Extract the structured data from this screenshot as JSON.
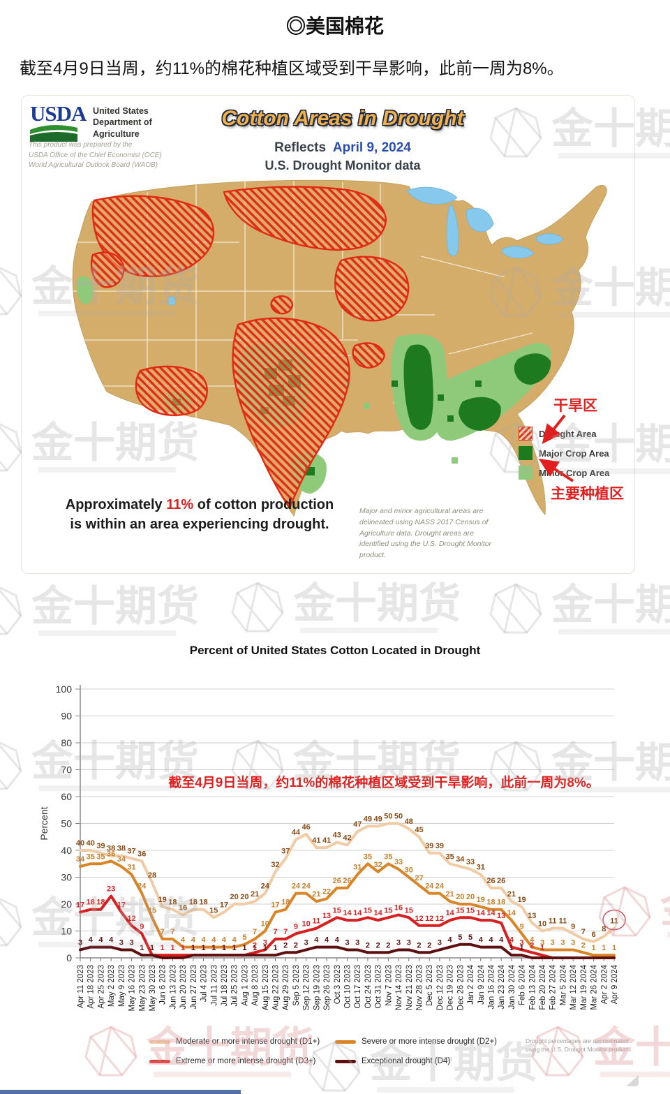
{
  "header": {
    "title": "◎美国棉花",
    "summary": "截至4月9日当周，约11%的棉花种植区域受到干旱影响，此前一周为8%。"
  },
  "map": {
    "usda": {
      "logo": "USDA",
      "agency": "United States\nDepartment of\nAgriculture",
      "prepared_by": "This product was prepared by the\nUSDA Office of the Chief Economist (OCE)\nWorld Agricultural Outlook Board (WAOB)"
    },
    "title": "Cotton Areas in Drought",
    "reflects_label": "Reflects",
    "reflects_date": "April 9, 2024",
    "source_line": "U.S. Drought Monitor data",
    "legend": [
      {
        "label": "Drought Area",
        "style": "red-hatch"
      },
      {
        "label": "Major Crop Area",
        "color": "#1e7a1f"
      },
      {
        "label": "Minor Crop Area",
        "color": "#8fca7a"
      }
    ],
    "annotations": {
      "drought_cn": "干旱区",
      "crop_cn": "主要种植区"
    },
    "approx": {
      "prefix": "Approximately ",
      "highlight": "11%",
      "suffix": " of cotton production is within an area experiencing drought."
    },
    "footnote": "Major and minor agricultural areas are delineated using NASS 2017 Census of Agriculture data.  Drought areas are identified using the U.S. Drought Monitor product."
  },
  "chart_data": {
    "type": "line",
    "title": "Percent of United States Cotton Located in Drought",
    "xlabel": "",
    "ylabel": "Percent",
    "ylim": [
      0,
      100
    ],
    "ytick_step": 10,
    "grid": true,
    "legend_position": "bottom",
    "annotation": "截至4月9日当周，约11%的棉花种植区域受到干旱影响，此前一周为8%。",
    "categories": [
      "Apr 11 2023",
      "Apr 18 2023",
      "Apr 25 2023",
      "May 2 2023",
      "May 9 2023",
      "May 16 2023",
      "May 23 2023",
      "May 30 2023",
      "Jun 6 2023",
      "Jun 13 2023",
      "Jun 20 2023",
      "Jun 27 2023",
      "Jul 4 2023",
      "Jul 11 2023",
      "Jul 18 2023",
      "Jul 25 2023",
      "Aug 1 2023",
      "Aug 8 2023",
      "Aug 15 2023",
      "Aug 22 2023",
      "Aug 29 2023",
      "Sep 5 2023",
      "Sep 12 2023",
      "Sep 19 2023",
      "Sep 26 2023",
      "Oct 3 2023",
      "Oct 10 2023",
      "Oct 17 2023",
      "Oct 24 2023",
      "Oct 31 2023",
      "Nov 7 2023",
      "Nov 14 2023",
      "Nov 21 2023",
      "Nov 28 2023",
      "Dec 5 2023",
      "Dec 12 2023",
      "Dec 19 2023",
      "Dec 26 2023",
      "Jan 2 2024",
      "Jan 9 2024",
      "Jan 16 2024",
      "Jan 23 2024",
      "Jan 30 2024",
      "Feb 6 2024",
      "Feb 13 2024",
      "Feb 20 2024",
      "Feb 27 2024",
      "Mar 5 2024",
      "Mar 12 2024",
      "Mar 19 2024",
      "Mar 26 2024",
      "Apr 2 2024",
      "Apr 9 2024"
    ],
    "series": [
      {
        "name": "Moderate or more intense drought (D1+)",
        "color": "#f0cba3",
        "label_color": "#8a4a12",
        "values": [
          40,
          40,
          39,
          38,
          38,
          37,
          36,
          28,
          19,
          18,
          16,
          18,
          18,
          15,
          17,
          20,
          20,
          21,
          24,
          32,
          37,
          44,
          46,
          41,
          41,
          43,
          42,
          47,
          49,
          49,
          50,
          50,
          48,
          45,
          39,
          39,
          35,
          34,
          33,
          31,
          26,
          26,
          21,
          19,
          13,
          10,
          11,
          11,
          9,
          7,
          6,
          8,
          11
        ]
      },
      {
        "name": "Severe or more intense drought (D2+)",
        "color": "#d98527",
        "label_color": "#c87f2a",
        "values": [
          34,
          35,
          35,
          36,
          34,
          31,
          24,
          15,
          7,
          7,
          4,
          4,
          4,
          4,
          4,
          4,
          5,
          7,
          10,
          17,
          18,
          24,
          24,
          21,
          22,
          26,
          26,
          31,
          35,
          32,
          35,
          33,
          30,
          27,
          24,
          24,
          21,
          20,
          20,
          19,
          18,
          18,
          14,
          9,
          4,
          3,
          3,
          3,
          3,
          2,
          1,
          1,
          1
        ]
      },
      {
        "name": "Extreme or more intense drought (D3+)",
        "color": "#d81f1f",
        "label_color": "#d81f1f",
        "values": [
          17,
          18,
          18,
          23,
          17,
          12,
          9,
          1,
          1,
          1,
          1,
          1,
          1,
          1,
          1,
          1,
          1,
          2,
          3,
          7,
          7,
          9,
          10,
          11,
          13,
          15,
          14,
          14,
          15,
          14,
          15,
          16,
          15,
          12,
          12,
          12,
          14,
          15,
          15,
          14,
          14,
          13,
          4,
          3,
          2,
          1,
          0,
          0,
          0,
          0,
          0,
          0,
          0
        ]
      },
      {
        "name": "Exceptional drought (D4)",
        "color": "#5e1011",
        "label_color": "#5e1011",
        "values": [
          3,
          4,
          4,
          4,
          3,
          3,
          1,
          1,
          0,
          0,
          0,
          1,
          1,
          1,
          1,
          1,
          1,
          1,
          1,
          1,
          2,
          2,
          3,
          4,
          4,
          4,
          3,
          3,
          2,
          2,
          2,
          3,
          3,
          2,
          2,
          3,
          4,
          5,
          5,
          4,
          4,
          4,
          1,
          1,
          0,
          0,
          0,
          0,
          0,
          0,
          0,
          0,
          0
        ]
      }
    ],
    "highlight_last_point": {
      "series": 0,
      "category": "Apr 9 2024",
      "value": 11,
      "circled": true
    },
    "footnote": "Drought percentages are approximated using the U.S. Drought Monitor product."
  },
  "watermark": {
    "text": "金十期货"
  }
}
